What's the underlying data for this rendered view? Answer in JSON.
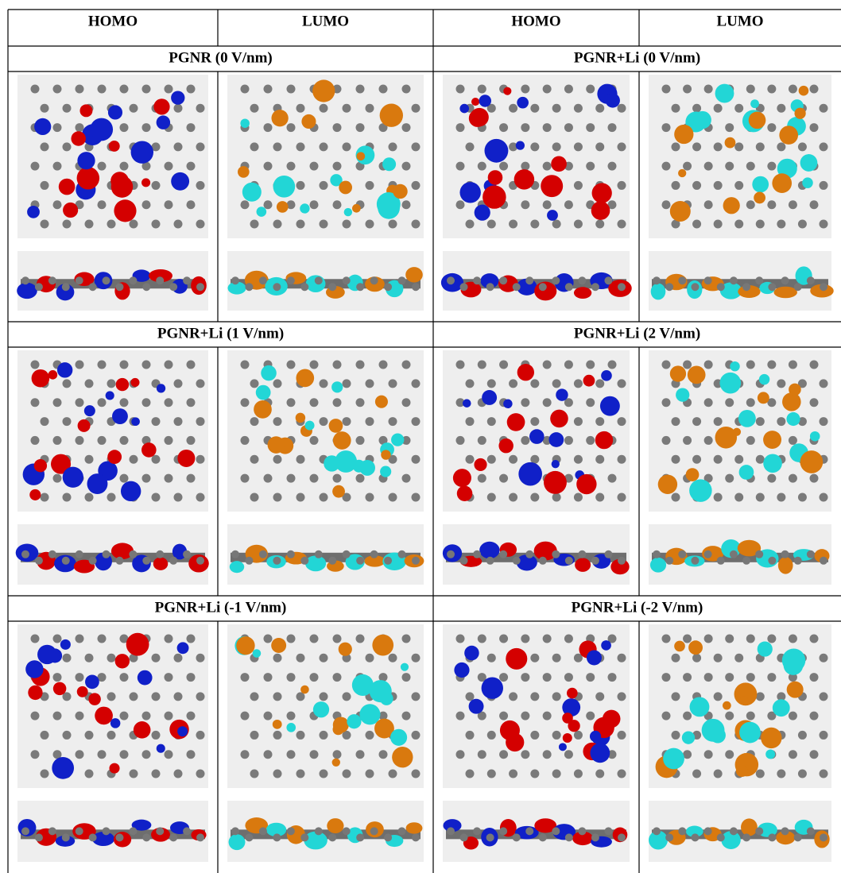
{
  "table": {
    "header": [
      "HOMO",
      "LUMO",
      "HOMO",
      "LUMO"
    ],
    "sections": [
      [
        "PGNR (0 V/nm)",
        "PGNR+Li (0 V/nm)"
      ],
      [
        "PGNR+Li (1 V/nm)",
        "PGNR+Li (2 V/nm)"
      ],
      [
        "PGNR+Li (-1 V/nm)",
        "PGNR+Li (-2 V/nm)"
      ]
    ]
  }
}
